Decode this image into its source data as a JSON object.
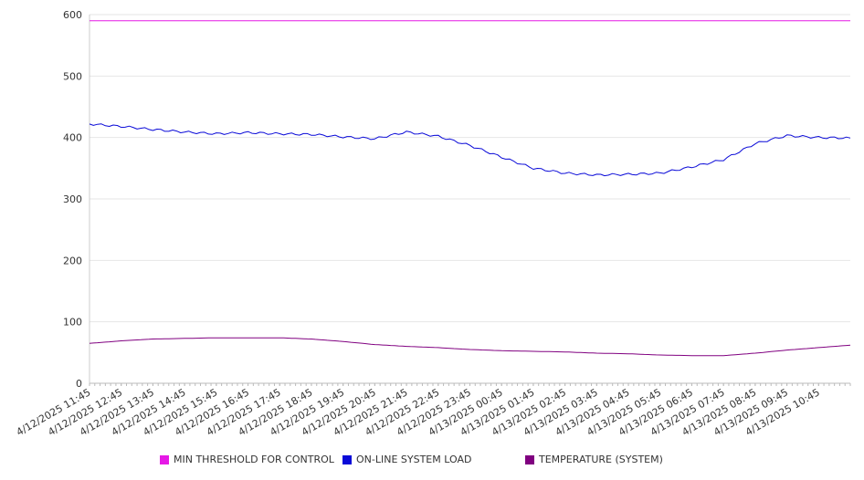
{
  "chart_data": {
    "type": "line",
    "title": "",
    "xlabel": "",
    "ylabel": "",
    "ylim": [
      0,
      600
    ],
    "yticks": [
      "0",
      "100",
      "200",
      "300",
      "400",
      "500",
      "600"
    ],
    "grid": "horizontal",
    "legend_position": "bottom",
    "x_tick_labels": [
      "4/12/2025 11:45",
      "4/12/2025 12:45",
      "4/12/2025 13:45",
      "4/12/2025 14:45",
      "4/12/2025 15:45",
      "4/12/2025 16:45",
      "4/12/2025 17:45",
      "4/12/2025 18:45",
      "4/12/2025 19:45",
      "4/12/2025 20:45",
      "4/12/2025 21:45",
      "4/12/2025 22:45",
      "4/12/2025 23:45",
      "4/13/2025 00:45",
      "4/13/2025 01:45",
      "4/13/2025 02:45",
      "4/13/2025 03:45",
      "4/13/2025 04:45",
      "4/13/2025 05:45",
      "4/13/2025 06:45",
      "4/13/2025 07:45",
      "4/13/2025 08:45",
      "4/13/2025 09:45",
      "4/13/2025 10:45"
    ],
    "x": [
      "4/12/2025 11:45",
      "4/12/2025 12:45",
      "4/12/2025 13:45",
      "4/12/2025 14:45",
      "4/12/2025 15:45",
      "4/12/2025 16:45",
      "4/12/2025 17:45",
      "4/12/2025 18:45",
      "4/12/2025 19:45",
      "4/12/2025 20:45",
      "4/12/2025 21:45",
      "4/12/2025 22:45",
      "4/12/2025 23:45",
      "4/13/2025 00:45",
      "4/13/2025 01:45",
      "4/13/2025 02:45",
      "4/13/2025 03:45",
      "4/13/2025 04:45",
      "4/13/2025 05:45",
      "4/13/2025 06:45",
      "4/13/2025 07:45",
      "4/13/2025 08:45",
      "4/13/2025 09:45",
      "4/13/2025 10:45",
      "4/13/2025 11:45"
    ],
    "series": [
      {
        "name": "MIN THRESHOLD FOR CONTROL",
        "color": "#e619e6",
        "values": [
          590,
          590,
          590,
          590,
          590,
          590,
          590,
          590,
          590,
          590,
          590,
          590,
          590,
          590,
          590,
          590,
          590,
          590,
          590,
          590,
          590,
          590,
          590,
          590,
          590
        ]
      },
      {
        "name": "ON-LINE SYSTEM LOAD",
        "color": "#0a0ad8",
        "values": [
          422,
          418,
          413,
          409,
          406,
          408,
          406,
          405,
          401,
          398,
          409,
          402,
          387,
          368,
          350,
          342,
          339,
          340,
          342,
          352,
          364,
          390,
          403,
          400,
          399
        ]
      },
      {
        "name": "TEMPERATURE (SYSTEM)",
        "color": "#800080",
        "values": [
          65,
          69,
          72,
          73,
          74,
          74,
          74,
          72,
          68,
          63,
          60,
          58,
          55,
          53,
          52,
          51,
          49,
          48,
          46,
          45,
          45,
          49,
          54,
          58,
          62
        ]
      }
    ]
  }
}
